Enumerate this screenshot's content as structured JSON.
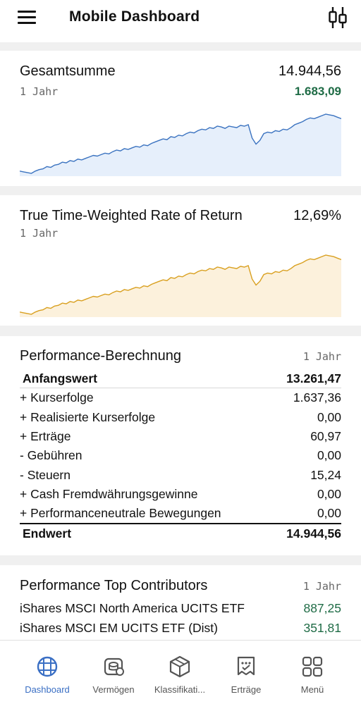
{
  "header": {
    "title": "Mobile Dashboard",
    "menu_icon": "hamburger-icon",
    "chart_icon": "candlestick-icon"
  },
  "summary": {
    "title": "Gesamtsumme",
    "period": "1 Jahr",
    "value": "14.944,56",
    "change": "1.683,09"
  },
  "ttwror": {
    "title": "True Time-Weighted Rate of Return",
    "period": "1 Jahr",
    "value": "12,69%"
  },
  "performance": {
    "title": "Performance-Berechnung",
    "period": "1 Jahr",
    "start": {
      "label": "Anfangswert",
      "value": "13.261,47"
    },
    "rows": [
      {
        "label": "+ Kurserfolge",
        "value": "1.637,36"
      },
      {
        "label": "+ Realisierte Kurserfolge",
        "value": "0,00"
      },
      {
        "label": "+ Erträge",
        "value": "60,97"
      },
      {
        "label": "- Gebühren",
        "value": "0,00"
      },
      {
        "label": "- Steuern",
        "value": "15,24"
      },
      {
        "label": "+ Cash Fremdwährungsgewinne",
        "value": "0,00"
      },
      {
        "label": "+ Performanceneutrale Bewegungen",
        "value": "0,00"
      }
    ],
    "end": {
      "label": "Endwert",
      "value": "14.944,56"
    }
  },
  "contributors": {
    "title": "Performance Top Contributors",
    "period": "1 Jahr",
    "items": [
      {
        "name": "iShares MSCI North America UCITS ETF",
        "value": "887,25"
      },
      {
        "name": "iShares MSCI EM UCITS ETF (Dist)",
        "value": "351,81"
      }
    ]
  },
  "nav": {
    "items": [
      {
        "label": "Dashboard",
        "icon": "grid-globe-icon",
        "active": true
      },
      {
        "label": "Vermögen",
        "icon": "coins-icon",
        "active": false
      },
      {
        "label": "Klassifikati...",
        "icon": "cube-icon",
        "active": false
      },
      {
        "label": "Erträge",
        "icon": "income-icon",
        "active": false
      },
      {
        "label": "Menü",
        "icon": "apps-icon",
        "active": false
      }
    ]
  },
  "colors": {
    "accent_blue": "#3a6fc4",
    "chart_blue_line": "#3b73c0",
    "chart_blue_fill": "#e6effb",
    "chart_orange_line": "#d9a020",
    "chart_orange_fill": "#fcf1dc",
    "positive_green": "#1e6b45"
  },
  "chart_data": [
    {
      "type": "area",
      "series": [
        {
          "values": [
            14,
            13,
            12,
            11,
            14,
            16,
            17,
            20,
            19,
            22,
            23,
            26,
            25,
            28,
            27,
            30,
            29,
            31,
            33,
            35,
            34,
            36,
            38,
            37,
            40,
            42,
            41,
            44,
            43,
            45,
            47,
            46,
            49,
            48,
            51,
            53,
            55,
            57,
            56,
            60,
            59,
            62,
            61,
            64,
            66,
            65,
            68,
            70,
            69,
            72,
            71,
            74,
            73,
            71,
            74,
            73,
            72,
            75,
            74,
            76,
            58,
            50,
            55,
            64,
            66,
            65,
            68,
            67,
            70,
            69,
            72,
            76,
            78,
            80,
            83,
            85,
            84,
            86,
            88,
            90,
            89,
            88,
            86,
            84
          ]
        }
      ]
    },
    {
      "type": "area",
      "series": [
        {
          "values": [
            14,
            13,
            12,
            11,
            14,
            16,
            17,
            20,
            19,
            22,
            23,
            26,
            25,
            28,
            27,
            30,
            29,
            31,
            33,
            35,
            34,
            36,
            38,
            37,
            40,
            42,
            41,
            44,
            43,
            45,
            47,
            46,
            49,
            48,
            51,
            53,
            55,
            57,
            56,
            60,
            59,
            62,
            61,
            64,
            66,
            65,
            68,
            70,
            69,
            72,
            71,
            74,
            73,
            71,
            74,
            73,
            72,
            75,
            74,
            76,
            58,
            50,
            55,
            64,
            66,
            65,
            68,
            67,
            70,
            69,
            72,
            76,
            78,
            80,
            83,
            85,
            84,
            86,
            88,
            90,
            89,
            88,
            86,
            84
          ]
        }
      ]
    }
  ]
}
